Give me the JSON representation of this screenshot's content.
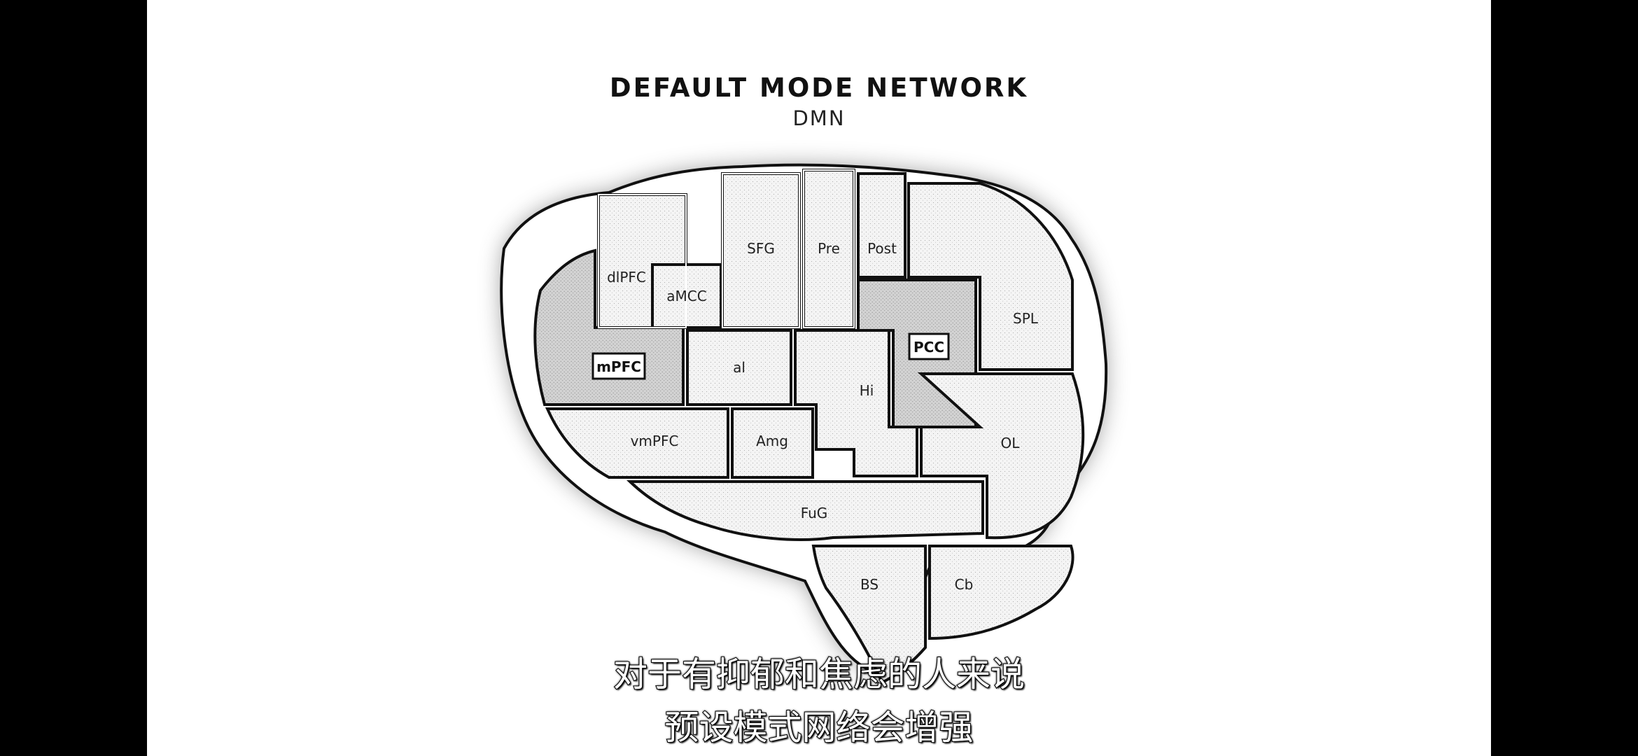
{
  "diagram": {
    "title": "DEFAULT MODE NETWORK",
    "subtitle": "DMN",
    "regions": {
      "dlpfc": "dlPFC",
      "amcc": "aMCC",
      "sfg": "SFG",
      "pre": "Pre",
      "post": "Post",
      "spl": "SPL",
      "mpfc": "mPFC",
      "al": "al",
      "hi": "Hi",
      "pcc": "PCC",
      "vmpfc": "vmPFC",
      "amg": "Amg",
      "ol": "OL",
      "fug": "FuG",
      "bs": "BS",
      "cb": "Cb"
    },
    "highlighted_regions": [
      "mPFC",
      "PCC"
    ],
    "colors": {
      "highlight_fill": "#d2d2d2",
      "region_fill": "#f4f4f4",
      "outline": "#111111"
    }
  },
  "subtitles": {
    "line1": "对于有抑郁和焦虑的人来说",
    "line2": "预设模式网络会增强"
  }
}
